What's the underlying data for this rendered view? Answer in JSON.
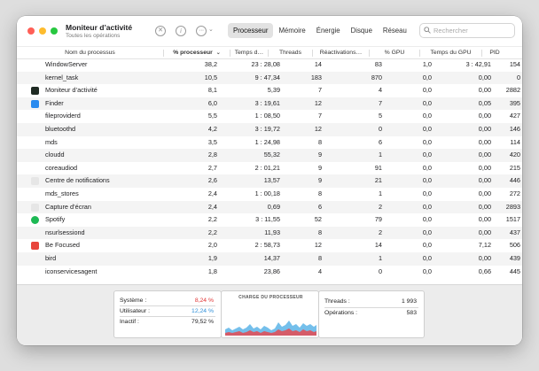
{
  "window": {
    "title": "Moniteur d’activité",
    "subtitle": "Toutes les opérations"
  },
  "toolbar": {
    "stop_icon": "x-circle-icon",
    "info_icon": "info-circle-icon",
    "more_icon": "ellipsis-circle-icon",
    "tabs": [
      {
        "label": "Processeur",
        "active": true
      },
      {
        "label": "Mémoire",
        "active": false
      },
      {
        "label": "Énergie",
        "active": false
      },
      {
        "label": "Disque",
        "active": false
      },
      {
        "label": "Réseau",
        "active": false
      }
    ],
    "search_placeholder": "Rechercher"
  },
  "table": {
    "columns": {
      "name": "Nom du processus",
      "cpu": "% processeur",
      "time": "Temps d…",
      "threads": "Threads",
      "wakeups": "Réactivations…",
      "gpu": "% GPU",
      "gpu_time": "Temps du GPU",
      "pid": "PID"
    },
    "sorted_column": "cpu",
    "sort_direction": "descending",
    "rows": [
      {
        "name": "WindowServer",
        "cpu": "38,2",
        "time": "23 : 28,08",
        "threads": "14",
        "wakeups": "83",
        "gpu": "1,0",
        "gpu_time": "3 : 42,91",
        "pid": "154",
        "icon": "none"
      },
      {
        "name": "kernel_task",
        "cpu": "10,5",
        "time": "9 : 47,34",
        "threads": "183",
        "wakeups": "870",
        "gpu": "0,0",
        "gpu_time": "0,00",
        "pid": "0",
        "icon": "none"
      },
      {
        "name": "Moniteur d’activité",
        "cpu": "8,1",
        "time": "5,39",
        "threads": "7",
        "wakeups": "4",
        "gpu": "0,0",
        "gpu_time": "0,00",
        "pid": "2882",
        "icon": "activity-monitor-icon",
        "icon_color": "#1f2a23"
      },
      {
        "name": "Finder",
        "cpu": "6,0",
        "time": "3 : 19,61",
        "threads": "12",
        "wakeups": "7",
        "gpu": "0,0",
        "gpu_time": "0,05",
        "pid": "395",
        "icon": "finder-icon",
        "icon_color": "#2a8bef"
      },
      {
        "name": "fileproviderd",
        "cpu": "5,5",
        "time": "1 : 08,50",
        "threads": "7",
        "wakeups": "5",
        "gpu": "0,0",
        "gpu_time": "0,00",
        "pid": "427",
        "icon": "none"
      },
      {
        "name": "bluetoothd",
        "cpu": "4,2",
        "time": "3 : 19,72",
        "threads": "12",
        "wakeups": "0",
        "gpu": "0,0",
        "gpu_time": "0,00",
        "pid": "146",
        "icon": "none"
      },
      {
        "name": "mds",
        "cpu": "3,5",
        "time": "1 : 24,98",
        "threads": "8",
        "wakeups": "6",
        "gpu": "0,0",
        "gpu_time": "0,00",
        "pid": "114",
        "icon": "none"
      },
      {
        "name": "cloudd",
        "cpu": "2,8",
        "time": "55,32",
        "threads": "9",
        "wakeups": "1",
        "gpu": "0,0",
        "gpu_time": "0,00",
        "pid": "420",
        "icon": "none"
      },
      {
        "name": "coreaudiod",
        "cpu": "2,7",
        "time": "2 : 01,21",
        "threads": "9",
        "wakeups": "91",
        "gpu": "0,0",
        "gpu_time": "0,00",
        "pid": "215",
        "icon": "none"
      },
      {
        "name": "Centre de notifications",
        "cpu": "2,6",
        "time": "13,57",
        "threads": "9",
        "wakeups": "21",
        "gpu": "0,0",
        "gpu_time": "0,00",
        "pid": "446",
        "icon": "notification-center-icon",
        "icon_color": "#e6e6e6"
      },
      {
        "name": "mds_stores",
        "cpu": "2,4",
        "time": "1 : 00,18",
        "threads": "8",
        "wakeups": "1",
        "gpu": "0,0",
        "gpu_time": "0,00",
        "pid": "272",
        "icon": "none"
      },
      {
        "name": "Capture d’écran",
        "cpu": "2,4",
        "time": "0,69",
        "threads": "6",
        "wakeups": "2",
        "gpu": "0,0",
        "gpu_time": "0,00",
        "pid": "2893",
        "icon": "screenshot-icon",
        "icon_color": "#e6e6e6"
      },
      {
        "name": "Spotify",
        "cpu": "2,2",
        "time": "3 : 11,55",
        "threads": "52",
        "wakeups": "79",
        "gpu": "0,0",
        "gpu_time": "0,00",
        "pid": "1517",
        "icon": "spotify-icon",
        "icon_color": "#1db954"
      },
      {
        "name": "nsurlsessiond",
        "cpu": "2,2",
        "time": "11,93",
        "threads": "8",
        "wakeups": "2",
        "gpu": "0,0",
        "gpu_time": "0,00",
        "pid": "437",
        "icon": "none"
      },
      {
        "name": "Be Focused",
        "cpu": "2,0",
        "time": "2 : 58,73",
        "threads": "12",
        "wakeups": "14",
        "gpu": "0,0",
        "gpu_time": "7,12",
        "pid": "506",
        "icon": "be-focused-icon",
        "icon_color": "#e8453c"
      },
      {
        "name": "bird",
        "cpu": "1,9",
        "time": "14,37",
        "threads": "8",
        "wakeups": "1",
        "gpu": "0,0",
        "gpu_time": "0,00",
        "pid": "439",
        "icon": "none"
      },
      {
        "name": "iconservicesagent",
        "cpu": "1,8",
        "time": "23,86",
        "threads": "4",
        "wakeups": "0",
        "gpu": "0,0",
        "gpu_time": "0,66",
        "pid": "445",
        "icon": "none"
      }
    ]
  },
  "summary": {
    "system_label": "Système :",
    "system_value": "8,24 %",
    "system_color": "#e03131",
    "user_label": "Utilisateur :",
    "user_value": "12,24 %",
    "user_color": "#2f8fd8",
    "idle_label": "Inactif :",
    "idle_value": "79,52 %",
    "chart_title": "CHARGE DU PROCESSEUR",
    "threads_label": "Threads :",
    "threads_value": "1 993",
    "processes_label": "Opérations :",
    "processes_value": "583"
  }
}
